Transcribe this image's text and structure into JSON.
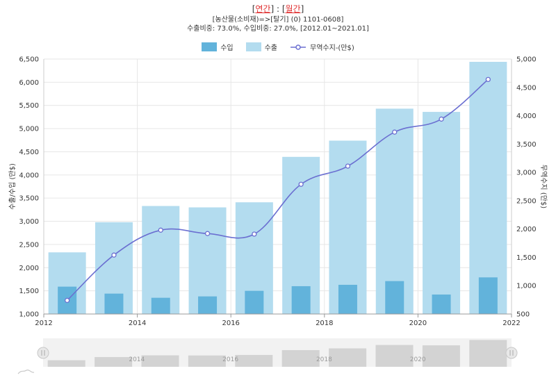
{
  "header": {
    "title_prefix": "[",
    "link_annual": "연간",
    "title_separator": "] : [",
    "link_monthly": "월간",
    "title_suffix": "]",
    "subtitle1": "[농산물(소비재)=>[탈기] (0) 1101-0608]",
    "subtitle2": "수출비중: 73.0%, 수입비중: 27.0%, [2012.01~2021.01]"
  },
  "legend": {
    "import_label": "수입",
    "export_label": "수출",
    "balance_label": "무역수지-(만$)"
  },
  "colors": {
    "import": "#62b3db",
    "export": "#b3dcef",
    "balance": "#6b6fd1",
    "grid": "#e6e6e6",
    "navigator_bar": "#d3d3d3"
  },
  "chart_data": {
    "type": "bar",
    "x_tick_labels": [
      "2012",
      "2014",
      "2016",
      "2018",
      "2020",
      "2022"
    ],
    "x_categories": [
      2012.5,
      2013.5,
      2014.5,
      2015.5,
      2016.5,
      2017.5,
      2018.5,
      2019.5,
      2020.5,
      2021.5
    ],
    "ylabel_left": "수출/수입 (만$)",
    "ylabel_right": "무역수지 (만$)",
    "ylim_left": [
      1000,
      6500
    ],
    "ylim_right": [
      500,
      5000
    ],
    "y_left_ticks": [
      "1,000",
      "1,500",
      "2,000",
      "2,500",
      "3,000",
      "3,500",
      "4,000",
      "4,500",
      "5,000",
      "5,500",
      "6,000",
      "6,500"
    ],
    "y_right_ticks": [
      "500",
      "1,000",
      "1,500",
      "2,000",
      "2,500",
      "3,000",
      "3,500",
      "4,000",
      "4,500",
      "5,000"
    ],
    "xlim": [
      2012,
      2022
    ],
    "grid": true,
    "legend_position": "top-center",
    "series": [
      {
        "name": "수출",
        "kind": "bar",
        "axis": "left",
        "values": [
          2330,
          2980,
          3330,
          3300,
          3410,
          4390,
          4740,
          5430,
          5360,
          6440
        ]
      },
      {
        "name": "수입",
        "kind": "bar",
        "axis": "left",
        "values": [
          1590,
          1440,
          1350,
          1380,
          1500,
          1600,
          1630,
          1710,
          1420,
          1790
        ]
      },
      {
        "name": "무역수지-(만$)",
        "kind": "line",
        "axis": "right",
        "values": [
          740,
          1540,
          1980,
          1920,
          1910,
          2790,
          3110,
          3710,
          3940,
          4640
        ]
      }
    ],
    "navigator": {
      "tick_labels": [
        "2014",
        "2016",
        "2018",
        "2020"
      ]
    }
  }
}
